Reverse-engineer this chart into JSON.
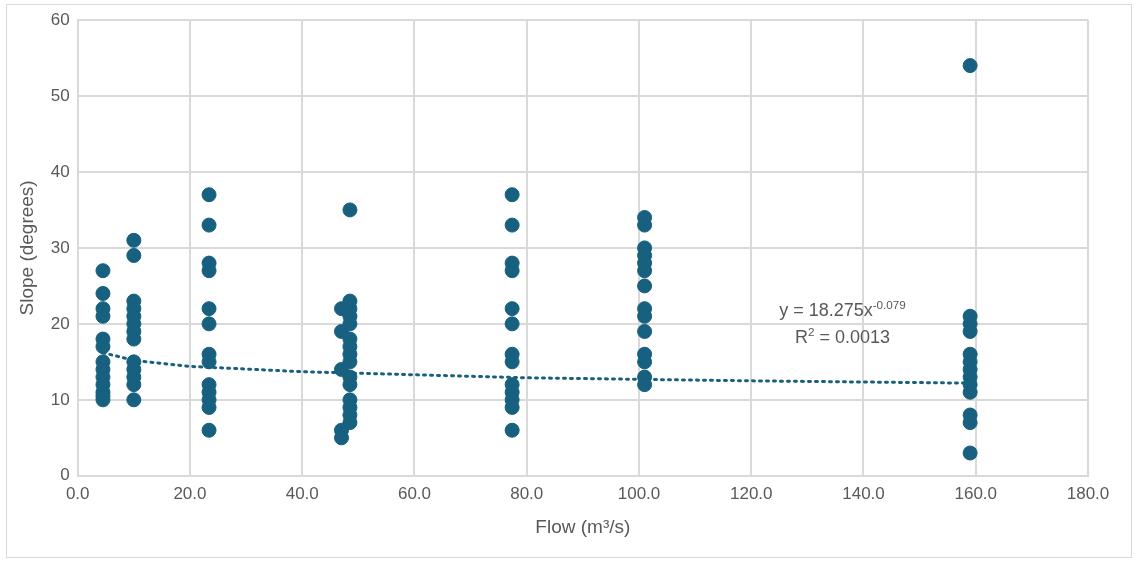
{
  "chart_data": {
    "type": "scatter",
    "xlabel": "Flow (m³/s)",
    "ylabel": "Slope (degrees)",
    "xlim": [
      0,
      180
    ],
    "xticks": [
      {
        "value": 0,
        "label": "0.0"
      },
      {
        "value": 20,
        "label": "20.0"
      },
      {
        "value": 40,
        "label": "40.0"
      },
      {
        "value": 60,
        "label": "60.0"
      },
      {
        "value": 80,
        "label": "80.0"
      },
      {
        "value": 100,
        "label": "100.0"
      },
      {
        "value": 120,
        "label": "120.0"
      },
      {
        "value": 140,
        "label": "140.0"
      },
      {
        "value": 160,
        "label": "160.0"
      },
      {
        "value": 180,
        "label": "180.0"
      }
    ],
    "ylim": [
      0,
      60
    ],
    "yticks": [
      0,
      10,
      20,
      30,
      40,
      50,
      60
    ],
    "grid": true,
    "legend": false,
    "marker": "circle",
    "annotations": [
      "y = 18.275x$^{-0.079}$",
      "R$^{2}$ = 0.0013"
    ],
    "series": [
      {
        "color": "#17607f",
        "x": [
          4.5,
          4.5,
          4.5,
          4.5,
          4.5,
          4.5,
          4.5,
          4.5,
          4.5,
          4.5,
          4.5,
          4.5,
          4.5,
          10,
          10,
          10,
          10,
          10,
          10,
          10,
          10,
          10,
          10,
          10,
          10,
          10,
          23.4,
          23.4,
          23.4,
          23.4,
          23.4,
          23.4,
          23.4,
          23.4,
          23.4,
          23.4,
          23.4,
          23.4,
          23.4,
          47,
          47,
          47,
          47,
          47,
          48.5,
          48.5,
          48.5,
          48.5,
          48.5,
          48.5,
          48.5,
          48.5,
          48.5,
          48.5,
          48.5,
          48.5,
          48.5,
          48.5,
          48.5,
          77.4,
          77.4,
          77.4,
          77.4,
          77.4,
          77.4,
          77.4,
          77.4,
          77.4,
          77.4,
          77.4,
          77.4,
          77.4,
          101,
          101,
          101,
          101,
          101,
          101,
          101,
          101,
          101,
          101,
          101,
          101,
          101,
          101,
          159,
          159,
          159,
          159,
          159,
          159,
          159,
          159,
          159,
          159,
          159,
          159,
          159
        ],
        "values": [
          27,
          24,
          22,
          21,
          18,
          17,
          15,
          14,
          13,
          12,
          11,
          10.5,
          10,
          31,
          29,
          23,
          22,
          21,
          20,
          19,
          18,
          15,
          14,
          13,
          12,
          10,
          37,
          33,
          28,
          27,
          22,
          20,
          16,
          15,
          12,
          11,
          10,
          9,
          6,
          22,
          19,
          14,
          6,
          5,
          35,
          23,
          22,
          21,
          20,
          18,
          17,
          16,
          15,
          13,
          12,
          10,
          9,
          8,
          7,
          37,
          33,
          28,
          27,
          22,
          20,
          16,
          15,
          12,
          11,
          10,
          9,
          6,
          34,
          33,
          30,
          29,
          28,
          27,
          25,
          22,
          21,
          19,
          16,
          15,
          13,
          12,
          54,
          21,
          20,
          19,
          16,
          15,
          14,
          13,
          12,
          11,
          8,
          7,
          3
        ]
      },
      {
        "type": "line",
        "color": "#17607f",
        "marker": "none",
        "line_style": "dotted",
        "x": [
          4.5,
          10,
          20,
          40,
          80,
          120,
          159
        ],
        "values": [
          16.2,
          15.2,
          14.4,
          13.7,
          12.9,
          12.5,
          12.2
        ]
      }
    ]
  }
}
